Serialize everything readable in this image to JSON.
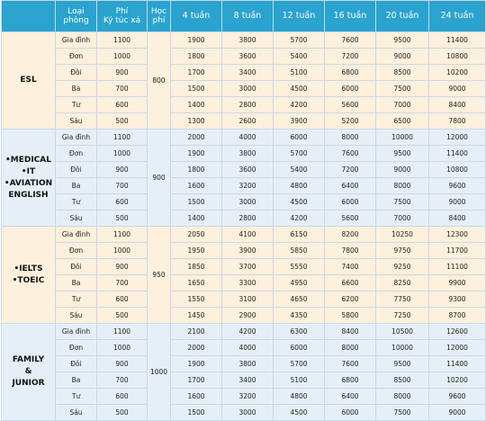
{
  "header": {
    "program": "",
    "room_type": [
      "Loại",
      "phòng"
    ],
    "dorm_fee": [
      "Phí",
      "Ký túc xá"
    ],
    "tuition": [
      "Học",
      "phí"
    ],
    "weeks": [
      "4 tuần",
      "8 tuần",
      "12 tuần",
      "16 tuần",
      "20 tuần",
      "24 tuần"
    ]
  },
  "groups": [
    {
      "program_lines": [
        "ESL"
      ],
      "tuition": "800",
      "rows": [
        {
          "room": "Gia đình",
          "fee": "1100",
          "prices": [
            "1900",
            "3800",
            "5700",
            "7600",
            "9500",
            "11400"
          ]
        },
        {
          "room": "Đơn",
          "fee": "1000",
          "prices": [
            "1800",
            "3600",
            "5400",
            "7200",
            "9000",
            "10800"
          ]
        },
        {
          "room": "Đôi",
          "fee": "900",
          "prices": [
            "1700",
            "3400",
            "5100",
            "6800",
            "8500",
            "10200"
          ]
        },
        {
          "room": "Ba",
          "fee": "700",
          "prices": [
            "1500",
            "3000",
            "4500",
            "6000",
            "7500",
            "9000"
          ]
        },
        {
          "room": "Tư",
          "fee": "600",
          "prices": [
            "1400",
            "2800",
            "4200",
            "5600",
            "7000",
            "8400"
          ]
        },
        {
          "room": "Sáu",
          "fee": "500",
          "prices": [
            "1300",
            "2600",
            "3900",
            "5200",
            "6500",
            "7800"
          ]
        }
      ]
    },
    {
      "program_lines": [
        "•MEDICAL",
        "•IT",
        "•AVIATION",
        "ENGLISH"
      ],
      "tuition": "900",
      "rows": [
        {
          "room": "Gia đình",
          "fee": "1100",
          "prices": [
            "2000",
            "4000",
            "6000",
            "8000",
            "10000",
            "12000"
          ]
        },
        {
          "room": "Đơn",
          "fee": "1000",
          "prices": [
            "1900",
            "3800",
            "5700",
            "7600",
            "9500",
            "11400"
          ]
        },
        {
          "room": "Đôi",
          "fee": "900",
          "prices": [
            "1800",
            "3600",
            "5400",
            "7200",
            "9000",
            "10800"
          ]
        },
        {
          "room": "Ba",
          "fee": "700",
          "prices": [
            "1600",
            "3200",
            "4800",
            "6400",
            "8000",
            "9600"
          ]
        },
        {
          "room": "Tư",
          "fee": "600",
          "prices": [
            "1500",
            "3000",
            "4500",
            "6000",
            "7500",
            "9000"
          ]
        },
        {
          "room": "Sáu",
          "fee": "500",
          "prices": [
            "1400",
            "2800",
            "4200",
            "5600",
            "7000",
            "8400"
          ]
        }
      ]
    },
    {
      "program_lines": [
        "•IELTS",
        "•TOEIC"
      ],
      "tuition": "950",
      "rows": [
        {
          "room": "Gia đình",
          "fee": "1100",
          "prices": [
            "2050",
            "4100",
            "6150",
            "8200",
            "10250",
            "12300"
          ]
        },
        {
          "room": "Đơn",
          "fee": "1000",
          "prices": [
            "1950",
            "3900",
            "5850",
            "7800",
            "9750",
            "11700"
          ]
        },
        {
          "room": "Đôi",
          "fee": "900",
          "prices": [
            "1850",
            "3700",
            "5550",
            "7400",
            "9250",
            "11100"
          ]
        },
        {
          "room": "Ba",
          "fee": "700",
          "prices": [
            "1650",
            "3300",
            "4950",
            "6600",
            "8250",
            "9900"
          ]
        },
        {
          "room": "Tư",
          "fee": "600",
          "prices": [
            "1550",
            "3100",
            "4650",
            "6200",
            "7750",
            "9300"
          ]
        },
        {
          "room": "Sáu",
          "fee": "500",
          "prices": [
            "1450",
            "2900",
            "4350",
            "5800",
            "7250",
            "8700"
          ]
        }
      ]
    },
    {
      "program_lines": [
        "FAMILY",
        "&",
        "JUNIOR"
      ],
      "tuition": "1000",
      "rows": [
        {
          "room": "Gia đình",
          "fee": "1100",
          "prices": [
            "2100",
            "4200",
            "6300",
            "8400",
            "10500",
            "12600"
          ]
        },
        {
          "room": "Đơn",
          "fee": "1000",
          "prices": [
            "2000",
            "4000",
            "6000",
            "8000",
            "10000",
            "12000"
          ]
        },
        {
          "room": "Đôi",
          "fee": "900",
          "prices": [
            "1900",
            "3800",
            "5700",
            "7600",
            "9500",
            "11400"
          ]
        },
        {
          "room": "Ba",
          "fee": "700",
          "prices": [
            "1700",
            "3400",
            "5100",
            "6800",
            "8500",
            "10200"
          ]
        },
        {
          "room": "Tư",
          "fee": "600",
          "prices": [
            "1600",
            "3200",
            "4800",
            "6400",
            "8000",
            "9600"
          ]
        },
        {
          "room": "Sáu",
          "fee": "500",
          "prices": [
            "1500",
            "3000",
            "4500",
            "6000",
            "7500",
            "9000"
          ]
        }
      ]
    }
  ]
}
